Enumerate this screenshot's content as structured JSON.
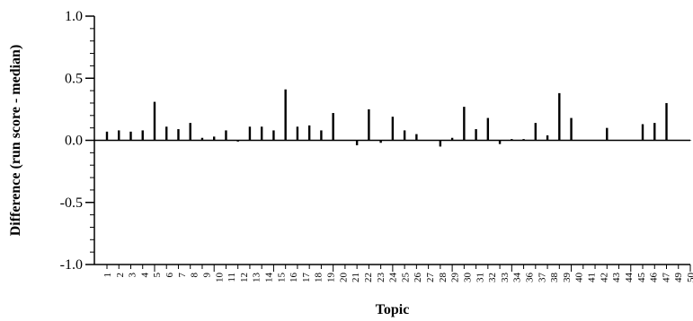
{
  "chart_data": {
    "type": "bar",
    "title": "",
    "xlabel": "Topic",
    "ylabel": "Difference (run score - median)",
    "ylim": [
      -1.0,
      1.0
    ],
    "yticks": [
      1.0,
      0.5,
      0.0,
      -0.5,
      -1.0
    ],
    "ytick_labels": [
      "1.0",
      "0.5",
      "0.0",
      "-0.5",
      "-1.0"
    ],
    "grid": false,
    "legend": "none",
    "bar_color": "#000000",
    "categories": [
      "1",
      "2",
      "3",
      "4",
      "5",
      "6",
      "7",
      "8",
      "9",
      "10",
      "11",
      "12",
      "13",
      "14",
      "15",
      "16",
      "17",
      "18",
      "19",
      "20",
      "21",
      "22",
      "23",
      "24",
      "25",
      "26",
      "27",
      "28",
      "29",
      "30",
      "31",
      "32",
      "33",
      "34",
      "35",
      "36",
      "37",
      "38",
      "39",
      "40",
      "41",
      "42",
      "43",
      "44",
      "45",
      "46",
      "47",
      "48",
      "49",
      "50"
    ],
    "values": [
      0.07,
      0.08,
      0.07,
      0.08,
      0.31,
      0.11,
      0.09,
      0.14,
      0.02,
      0.03,
      0.08,
      -0.01,
      0.11,
      0.11,
      0.08,
      0.41,
      0.11,
      0.12,
      0.08,
      0.22,
      0.0,
      -0.04,
      0.25,
      -0.02,
      0.19,
      0.08,
      0.05,
      0.0,
      -0.05,
      0.02,
      0.27,
      0.09,
      0.18,
      -0.03,
      0.01,
      0.01,
      0.14,
      0.04,
      0.38,
      0.18,
      0.0,
      0.0,
      0.1,
      0.0,
      0.0,
      0.13,
      0.14,
      0.3,
      0.0,
      0.0
    ],
    "xtick_labels": [
      "1",
      "2",
      "3",
      "4",
      "5",
      "6",
      "7",
      "8",
      "9",
      "10",
      "11",
      "12",
      "13",
      "14",
      "15",
      "16",
      "17",
      "18",
      "19",
      "20",
      "21",
      "22",
      "23",
      "24",
      "25",
      "26",
      "27",
      "28",
      "29",
      "30",
      "31",
      "32",
      "33",
      "34",
      "36",
      "37",
      "38",
      "39",
      "40",
      "41",
      "42",
      "43",
      "44",
      "45",
      "46",
      "47",
      "49",
      "50"
    ]
  }
}
